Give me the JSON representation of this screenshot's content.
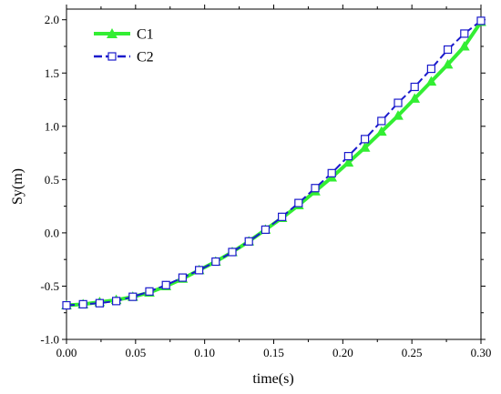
{
  "chart_data": {
    "type": "line",
    "xlabel": "time(s)",
    "ylabel": "Sy(m)",
    "xlim": [
      0.0,
      0.3
    ],
    "ylim": [
      -1.0,
      2.1
    ],
    "x_ticks": [
      "0.00",
      "0.05",
      "0.10",
      "0.15",
      "0.20",
      "0.25",
      "0.30"
    ],
    "x_tick_values": [
      0.0,
      0.05,
      0.1,
      0.15,
      0.2,
      0.25,
      0.3
    ],
    "y_ticks": [
      "-1.0",
      "-0.5",
      "0.0",
      "0.5",
      "1.0",
      "1.5",
      "2.0"
    ],
    "y_tick_values": [
      -1.0,
      -0.5,
      0.0,
      0.5,
      1.0,
      1.5,
      2.0
    ],
    "grid": false,
    "legend_position": "top-left",
    "series": [
      {
        "name": "C1",
        "color": "#33ee33",
        "marker": "triangle",
        "line": "solid",
        "x": [
          0.0,
          0.012,
          0.024,
          0.036,
          0.048,
          0.06,
          0.072,
          0.084,
          0.096,
          0.108,
          0.12,
          0.132,
          0.144,
          0.156,
          0.168,
          0.18,
          0.192,
          0.204,
          0.216,
          0.228,
          0.24,
          0.252,
          0.264,
          0.276,
          0.288,
          0.3
        ],
        "y": [
          -0.68,
          -0.67,
          -0.65,
          -0.63,
          -0.6,
          -0.56,
          -0.5,
          -0.43,
          -0.35,
          -0.27,
          -0.18,
          -0.08,
          0.03,
          0.14,
          0.26,
          0.39,
          0.52,
          0.66,
          0.8,
          0.95,
          1.1,
          1.26,
          1.42,
          1.58,
          1.75,
          1.98
        ]
      },
      {
        "name": "C2",
        "color": "#1a1acc",
        "marker": "square",
        "line": "dashed",
        "x": [
          0.0,
          0.012,
          0.024,
          0.036,
          0.048,
          0.06,
          0.072,
          0.084,
          0.096,
          0.108,
          0.12,
          0.132,
          0.144,
          0.156,
          0.168,
          0.18,
          0.192,
          0.204,
          0.216,
          0.228,
          0.24,
          0.252,
          0.264,
          0.276,
          0.288,
          0.3
        ],
        "y": [
          -0.68,
          -0.67,
          -0.66,
          -0.64,
          -0.6,
          -0.55,
          -0.49,
          -0.42,
          -0.35,
          -0.27,
          -0.18,
          -0.08,
          0.03,
          0.15,
          0.28,
          0.42,
          0.56,
          0.72,
          0.88,
          1.05,
          1.22,
          1.37,
          1.54,
          1.72,
          1.87,
          1.99
        ]
      }
    ]
  }
}
